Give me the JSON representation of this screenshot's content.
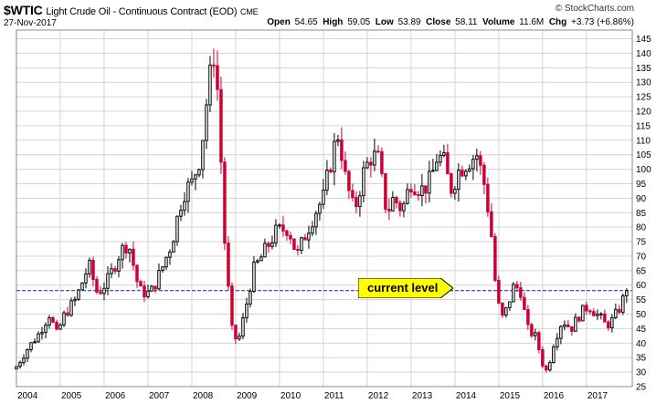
{
  "header": {
    "symbol": "$WTIC",
    "description": "Light Crude Oil - Continuous Contract (EOD)",
    "exchange": "CME",
    "date": "27-Nov-2017",
    "brand": "© StockCharts.com",
    "open_label": "Open",
    "open": "54.65",
    "high_label": "High",
    "high": "59.05",
    "low_label": "Low",
    "low": "53.89",
    "close_label": "Close",
    "close": "58.11",
    "volume_label": "Volume",
    "volume": "11.6M",
    "chg_label": "Chg",
    "chg": "+3.73 (+6.86%)"
  },
  "annotation": {
    "label": "current level",
    "level": 58.11,
    "color": "#ffff00"
  },
  "chart_data": {
    "type": "candlestick",
    "x_ticks": [
      "2004",
      "2005",
      "2006",
      "2007",
      "2008",
      "2009",
      "2010",
      "2011",
      "2012",
      "2013",
      "2014",
      "2015",
      "2016",
      "2017"
    ],
    "x_range": [
      2004.0,
      2017.92
    ],
    "ylim": [
      25,
      148
    ],
    "y_ticks": [
      25,
      30,
      35,
      40,
      45,
      50,
      55,
      60,
      65,
      70,
      75,
      80,
      85,
      90,
      95,
      100,
      105,
      110,
      115,
      120,
      125,
      130,
      135,
      140,
      145
    ],
    "y_axis_position": "right",
    "grid": true,
    "colors": {
      "up": "#000000",
      "down": "#cc0033",
      "reference_line": "#1a1aa6",
      "grid": "#d3d3d3"
    },
    "reference_line": 58.11,
    "close_series": [
      {
        "x": 2004.0,
        "close": 32
      },
      {
        "x": 2004.25,
        "close": 38
      },
      {
        "x": 2004.5,
        "close": 43
      },
      {
        "x": 2004.75,
        "close": 50
      },
      {
        "x": 2004.92,
        "close": 43
      },
      {
        "x": 2005.1,
        "close": 50
      },
      {
        "x": 2005.35,
        "close": 55
      },
      {
        "x": 2005.65,
        "close": 67
      },
      {
        "x": 2005.85,
        "close": 57
      },
      {
        "x": 2006.1,
        "close": 62
      },
      {
        "x": 2006.35,
        "close": 71
      },
      {
        "x": 2006.55,
        "close": 75
      },
      {
        "x": 2006.8,
        "close": 58
      },
      {
        "x": 2007.05,
        "close": 57
      },
      {
        "x": 2007.3,
        "close": 65
      },
      {
        "x": 2007.55,
        "close": 75
      },
      {
        "x": 2007.8,
        "close": 92
      },
      {
        "x": 2008.0,
        "close": 95
      },
      {
        "x": 2008.2,
        "close": 105
      },
      {
        "x": 2008.35,
        "close": 125
      },
      {
        "x": 2008.5,
        "close": 140
      },
      {
        "x": 2008.6,
        "close": 125
      },
      {
        "x": 2008.75,
        "close": 75
      },
      {
        "x": 2008.9,
        "close": 45
      },
      {
        "x": 2009.05,
        "close": 40
      },
      {
        "x": 2009.2,
        "close": 50
      },
      {
        "x": 2009.4,
        "close": 65
      },
      {
        "x": 2009.6,
        "close": 70
      },
      {
        "x": 2009.9,
        "close": 78
      },
      {
        "x": 2010.2,
        "close": 80
      },
      {
        "x": 2010.4,
        "close": 70
      },
      {
        "x": 2010.6,
        "close": 78
      },
      {
        "x": 2010.8,
        "close": 85
      },
      {
        "x": 2011.0,
        "close": 90
      },
      {
        "x": 2011.2,
        "close": 105
      },
      {
        "x": 2011.35,
        "close": 113
      },
      {
        "x": 2011.5,
        "close": 97
      },
      {
        "x": 2011.7,
        "close": 85
      },
      {
        "x": 2011.9,
        "close": 98
      },
      {
        "x": 2012.1,
        "close": 105
      },
      {
        "x": 2012.25,
        "close": 103
      },
      {
        "x": 2012.45,
        "close": 85
      },
      {
        "x": 2012.6,
        "close": 90
      },
      {
        "x": 2012.8,
        "close": 86
      },
      {
        "x": 2013.0,
        "close": 96
      },
      {
        "x": 2013.25,
        "close": 93
      },
      {
        "x": 2013.45,
        "close": 96
      },
      {
        "x": 2013.6,
        "close": 105
      },
      {
        "x": 2013.75,
        "close": 102
      },
      {
        "x": 2013.9,
        "close": 93
      },
      {
        "x": 2014.1,
        "close": 100
      },
      {
        "x": 2014.3,
        "close": 103
      },
      {
        "x": 2014.5,
        "close": 105
      },
      {
        "x": 2014.7,
        "close": 93
      },
      {
        "x": 2014.85,
        "close": 75
      },
      {
        "x": 2014.95,
        "close": 55
      },
      {
        "x": 2015.1,
        "close": 48
      },
      {
        "x": 2015.35,
        "close": 60
      },
      {
        "x": 2015.5,
        "close": 58
      },
      {
        "x": 2015.65,
        "close": 45
      },
      {
        "x": 2015.85,
        "close": 42
      },
      {
        "x": 2016.0,
        "close": 33
      },
      {
        "x": 2016.1,
        "close": 30
      },
      {
        "x": 2016.25,
        "close": 40
      },
      {
        "x": 2016.45,
        "close": 48
      },
      {
        "x": 2016.65,
        "close": 45
      },
      {
        "x": 2016.85,
        "close": 50
      },
      {
        "x": 2017.05,
        "close": 53
      },
      {
        "x": 2017.3,
        "close": 49
      },
      {
        "x": 2017.45,
        "close": 46
      },
      {
        "x": 2017.6,
        "close": 48
      },
      {
        "x": 2017.75,
        "close": 52
      },
      {
        "x": 2017.92,
        "close": 58.11
      }
    ]
  }
}
